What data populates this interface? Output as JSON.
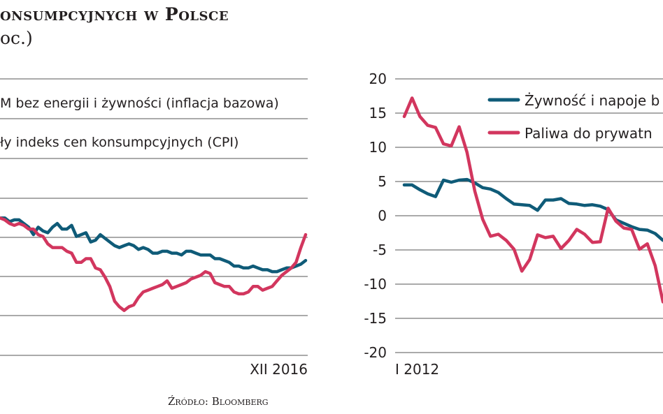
{
  "header": {
    "title": "onsumpcyjnych w Polsce",
    "subtitle": "oc.)",
    "source": "Źródło: Bloomberg"
  },
  "colors": {
    "teal": "#0f5b78",
    "crimson": "#d2365e",
    "grid": "#555555",
    "text": "#231f20"
  },
  "chart_data": [
    {
      "type": "line",
      "x_end_label": "XII 2016",
      "legend_position": "top",
      "grid": true,
      "series": [
        {
          "name": "M bez energii i żywności (inflacja bazowa)",
          "color": "#0f5b78",
          "values": [
            3.2,
            3.2,
            3.0,
            3.1,
            3.1,
            2.9,
            2.7,
            2.3,
            2.7,
            2.5,
            2.4,
            2.7,
            2.9,
            2.6,
            2.6,
            2.8,
            2.2,
            2.3,
            2.4,
            1.9,
            2.0,
            2.3,
            2.1,
            1.9,
            1.7,
            1.6,
            1.7,
            1.8,
            1.7,
            1.5,
            1.6,
            1.5,
            1.3,
            1.3,
            1.4,
            1.4,
            1.3,
            1.3,
            1.2,
            1.4,
            1.4,
            1.3,
            1.2,
            1.2,
            1.2,
            1.0,
            1.0,
            0.9,
            0.8,
            0.6,
            0.6,
            0.5,
            0.5,
            0.6,
            0.5,
            0.4,
            0.4,
            0.3,
            0.3,
            0.4,
            0.5,
            0.5,
            0.6,
            0.7,
            0.9
          ]
        },
        {
          "name": "ły indeks cen konsumpcyjnych (CPI)",
          "color": "#d2365e",
          "values": [
            3.2,
            3.1,
            2.9,
            2.8,
            2.9,
            2.8,
            2.6,
            2.6,
            2.3,
            2.2,
            1.8,
            1.6,
            1.6,
            1.6,
            1.4,
            1.3,
            0.8,
            0.8,
            1.0,
            1.0,
            0.5,
            0.4,
            0.0,
            -0.5,
            -1.3,
            -1.6,
            -1.8,
            -1.6,
            -1.5,
            -1.1,
            -0.8,
            -0.7,
            -0.6,
            -0.5,
            -0.4,
            -0.2,
            -0.6,
            -0.5,
            -0.4,
            -0.3,
            -0.1,
            0.0,
            0.1,
            0.3,
            0.2,
            -0.3,
            -0.4,
            -0.5,
            -0.5,
            -0.8,
            -0.9,
            -0.9,
            -0.8,
            -0.5,
            -0.5,
            -0.7,
            -0.6,
            -0.5,
            -0.2,
            0.1,
            0.3,
            0.5,
            0.8,
            1.6,
            2.3
          ]
        }
      ]
    },
    {
      "type": "line",
      "x_start_label": "I 2012",
      "ylim": [
        -20,
        20
      ],
      "y_ticks": [
        20,
        15,
        10,
        5,
        0,
        -5,
        -10,
        -15,
        -20
      ],
      "legend_position": "top",
      "grid": true,
      "series": [
        {
          "name": "Żywność i napoje b",
          "color": "#0f5b78",
          "values": [
            4.5,
            4.5,
            3.8,
            3.2,
            2.8,
            5.2,
            4.9,
            5.2,
            5.3,
            4.8,
            4.1,
            3.9,
            3.4,
            2.5,
            1.7,
            1.6,
            1.5,
            0.8,
            2.3,
            2.3,
            2.5,
            1.8,
            1.7,
            1.5,
            1.6,
            1.4,
            0.9,
            -0.6,
            -1.1,
            -1.6,
            -2.0,
            -2.1,
            -2.6,
            -3.6
          ]
        },
        {
          "name": "Paliwa do prywatn",
          "color": "#d2365e",
          "values": [
            14.5,
            17.2,
            14.5,
            13.2,
            12.9,
            10.5,
            10.2,
            13.0,
            9.3,
            3.6,
            -0.5,
            -3.0,
            -2.7,
            -3.6,
            -4.9,
            -8.1,
            -6.4,
            -2.8,
            -3.2,
            -3.0,
            -4.8,
            -3.6,
            -2.0,
            -2.7,
            -3.9,
            -3.8,
            1.1,
            -0.8,
            -1.8,
            -2.0,
            -4.9,
            -4.1,
            -7.3,
            -12.6
          ]
        }
      ]
    }
  ]
}
